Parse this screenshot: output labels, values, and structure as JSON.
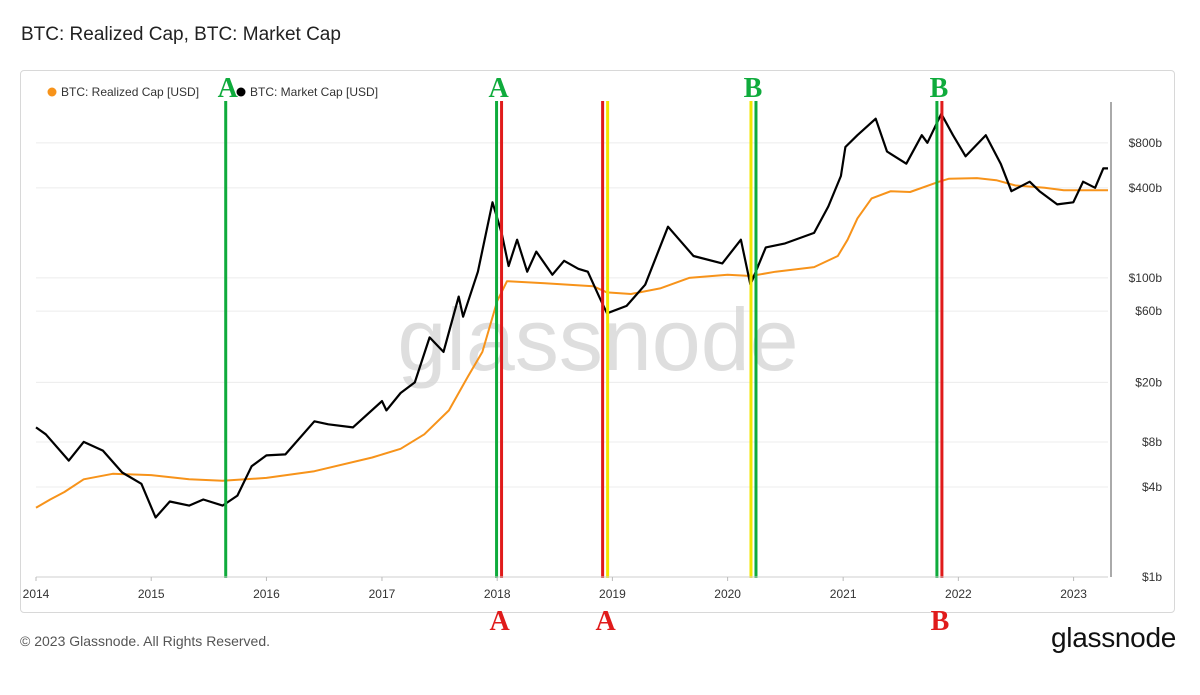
{
  "header": {
    "title": "BTC: Realized Cap, BTC: Market Cap"
  },
  "footer": {
    "copyright": "© 2023 Glassnode. All Rights Reserved.",
    "brand": "glassnode"
  },
  "watermark": "glassnode",
  "chart_data": {
    "type": "line",
    "title": "BTC: Realized Cap, BTC: Market Cap",
    "y_scale": "log",
    "ylim_usd": [
      1000000000,
      1500000000000
    ],
    "xlim": [
      "2014-01-01",
      "2023-04-20"
    ],
    "x_tick_labels": [
      "2014",
      "2015",
      "2016",
      "2017",
      "2018",
      "2019",
      "2020",
      "2021",
      "2022",
      "2023"
    ],
    "x_tick_dates": [
      "2014-01-01",
      "2015-01-01",
      "2016-01-01",
      "2017-01-01",
      "2018-01-01",
      "2019-01-01",
      "2020-01-01",
      "2021-01-01",
      "2022-01-01",
      "2023-01-01"
    ],
    "y_ticks": [
      {
        "value": 1000000000,
        "label": "$1b"
      },
      {
        "value": 4000000000,
        "label": "$4b"
      },
      {
        "value": 8000000000,
        "label": "$8b"
      },
      {
        "value": 20000000000,
        "label": "$20b"
      },
      {
        "value": 60000000000,
        "label": "$60b"
      },
      {
        "value": 100000000000,
        "label": "$100b"
      },
      {
        "value": 400000000000,
        "label": "$400b"
      },
      {
        "value": 800000000000,
        "label": "$800b"
      }
    ],
    "grid": true,
    "legend_position": "top-left",
    "series": [
      {
        "name": "BTC: Realized Cap [USD]",
        "color": "#f7931a",
        "x": [
          "2014-01-01",
          "2014-02-15",
          "2014-04-01",
          "2014-06-01",
          "2014-09-01",
          "2015-01-01",
          "2015-05-01",
          "2015-08-15",
          "2016-01-01",
          "2016-06-01",
          "2016-12-01",
          "2017-03-01",
          "2017-05-15",
          "2017-08-01",
          "2017-10-01",
          "2017-11-15",
          "2018-01-01",
          "2018-02-01",
          "2018-06-01",
          "2018-11-01",
          "2018-12-15",
          "2019-03-01",
          "2019-06-01",
          "2019-09-01",
          "2020-01-01",
          "2020-03-15",
          "2020-06-01",
          "2020-10-01",
          "2020-12-15",
          "2021-01-15",
          "2021-02-15",
          "2021-04-01",
          "2021-06-01",
          "2021-08-01",
          "2021-11-01",
          "2021-12-01",
          "2022-03-01",
          "2022-05-01",
          "2022-07-01",
          "2022-10-01",
          "2022-12-01",
          "2023-04-20"
        ],
        "values": [
          2900000000,
          3300000000,
          3700000000,
          4500000000,
          4900000000,
          4800000000,
          4500000000,
          4400000000,
          4600000000,
          5100000000,
          6300000000,
          7200000000,
          9000000000,
          13000000000,
          22000000000,
          32000000000,
          70000000000,
          95000000000,
          92000000000,
          88000000000,
          80000000000,
          78000000000,
          85000000000,
          100000000000,
          105000000000,
          103000000000,
          110000000000,
          118000000000,
          140000000000,
          180000000000,
          250000000000,
          340000000000,
          380000000000,
          375000000000,
          440000000000,
          460000000000,
          465000000000,
          450000000000,
          415000000000,
          400000000000,
          385000000000,
          385000000000
        ]
      },
      {
        "name": "BTC: Market Cap [USD]",
        "color": "#000000",
        "x": [
          "2014-01-01",
          "2014-02-01",
          "2014-04-15",
          "2014-06-01",
          "2014-08-01",
          "2014-10-01",
          "2014-12-01",
          "2015-01-15",
          "2015-03-01",
          "2015-05-01",
          "2015-06-15",
          "2015-08-15",
          "2015-10-01",
          "2015-11-15",
          "2016-01-01",
          "2016-03-01",
          "2016-06-01",
          "2016-07-15",
          "2016-10-01",
          "2017-01-01",
          "2017-01-15",
          "2017-03-01",
          "2017-04-15",
          "2017-06-01",
          "2017-07-15",
          "2017-09-01",
          "2017-09-15",
          "2017-11-01",
          "2017-12-17",
          "2018-01-15",
          "2018-02-06",
          "2018-03-05",
          "2018-04-06",
          "2018-05-05",
          "2018-06-25",
          "2018-08-01",
          "2018-09-15",
          "2018-10-15",
          "2018-11-20",
          "2018-12-15",
          "2019-02-15",
          "2019-04-15",
          "2019-06-26",
          "2019-08-01",
          "2019-09-15",
          "2019-12-15",
          "2020-02-12",
          "2020-03-13",
          "2020-05-01",
          "2020-07-01",
          "2020-10-01",
          "2020-11-15",
          "2020-12-25",
          "2021-01-08",
          "2021-02-15",
          "2021-04-14",
          "2021-05-20",
          "2021-07-20",
          "2021-09-07",
          "2021-09-25",
          "2021-11-08",
          "2021-12-15",
          "2022-01-24",
          "2022-03-29",
          "2022-05-15",
          "2022-06-18",
          "2022-08-15",
          "2022-09-15",
          "2022-11-10",
          "2022-12-31",
          "2023-01-31",
          "2023-03-10",
          "2023-04-05",
          "2023-04-20"
        ],
        "values": [
          10000000000,
          9000000000,
          6000000000,
          8000000000,
          7000000000,
          5000000000,
          4200000000,
          2500000000,
          3200000000,
          3000000000,
          3300000000,
          3000000000,
          3500000000,
          5500000000,
          6500000000,
          6600000000,
          11000000000,
          10500000000,
          10000000000,
          15000000000,
          13000000000,
          17000000000,
          20000000000,
          40000000000,
          32000000000,
          75000000000,
          55000000000,
          110000000000,
          320000000000,
          200000000000,
          120000000000,
          180000000000,
          110000000000,
          150000000000,
          105000000000,
          130000000000,
          115000000000,
          110000000000,
          75000000000,
          58000000000,
          65000000000,
          90000000000,
          220000000000,
          180000000000,
          140000000000,
          125000000000,
          180000000000,
          90000000000,
          160000000000,
          170000000000,
          200000000000,
          300000000000,
          480000000000,
          750000000000,
          900000000000,
          1160000000000,
          700000000000,
          580000000000,
          900000000000,
          800000000000,
          1250000000000,
          900000000000,
          650000000000,
          900000000000,
          580000000000,
          380000000000,
          440000000000,
          380000000000,
          310000000000,
          320000000000,
          440000000000,
          400000000000,
          540000000000,
          540000000000
        ]
      }
    ],
    "annotations": [
      {
        "date": "2015-08-25",
        "line_colors": [
          "#0fab3c"
        ],
        "label_top": "A",
        "label_top_color": "#0fab3c",
        "label_bottom": "",
        "label_bottom_color": ""
      },
      {
        "date": "2017-12-30",
        "line_colors": [
          "#0fab3c",
          "#e01b1b"
        ],
        "label_top": "A",
        "label_top_color": "#0fab3c",
        "label_bottom": "A",
        "label_bottom_color": "#e01b1b"
      },
      {
        "date": "2018-12-01",
        "line_colors": [
          "#e01b1b",
          "#f2e500"
        ],
        "label_top": "",
        "label_top_color": "",
        "label_bottom": "A",
        "label_bottom_color": "#e01b1b"
      },
      {
        "date": "2020-03-15",
        "line_colors": [
          "#f2e500",
          "#0fab3c"
        ],
        "label_top": "B",
        "label_top_color": "#0fab3c",
        "label_bottom": "",
        "label_bottom_color": ""
      },
      {
        "date": "2021-10-25",
        "line_colors": [
          "#0fab3c",
          "#e01b1b"
        ],
        "label_top": "B",
        "label_top_color": "#0fab3c",
        "label_bottom": "B",
        "label_bottom_color": "#e01b1b"
      }
    ]
  }
}
